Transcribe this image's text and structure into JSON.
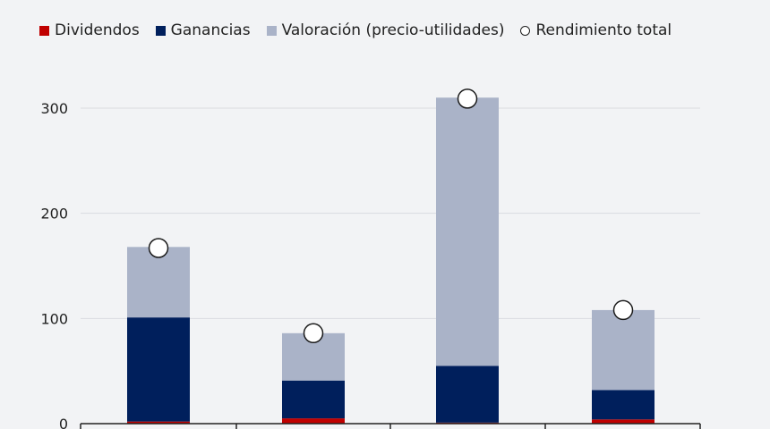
{
  "title_fragment": "",
  "legend": {
    "dividends": "Dividendos",
    "earnings": "Ganancias",
    "valuation": "Valoración (precio-utilidades)",
    "total": "Rendimiento total"
  },
  "colors": {
    "dividends": "#c00000",
    "earnings": "#001f5c",
    "valuation": "#aab3c8",
    "grid": "#d9dbe0",
    "axis": "#222222",
    "background": "#f2f3f5"
  },
  "chart_data": {
    "type": "bar",
    "stacked": true,
    "categories": [
      "",
      "",
      "",
      ""
    ],
    "series": [
      {
        "name": "Dividendos",
        "values": [
          2,
          5,
          1,
          4
        ]
      },
      {
        "name": "Ganancias",
        "values": [
          99,
          36,
          54,
          28
        ]
      },
      {
        "name": "Valoración (precio-utilidades)",
        "values": [
          67,
          45,
          255,
          76
        ]
      }
    ],
    "total_return": {
      "name": "Rendimiento total",
      "values": [
        167,
        86,
        309,
        108
      ]
    },
    "ylim": [
      0,
      330
    ],
    "yticks": [
      0,
      100,
      200,
      300
    ],
    "grid": true,
    "legend_position": "top-left"
  }
}
